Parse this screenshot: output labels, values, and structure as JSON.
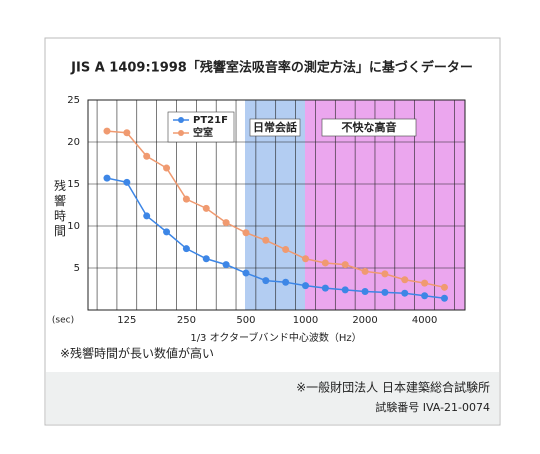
{
  "chart_data": {
    "type": "line",
    "title": "JIS A 1409:1998「残響室法吸音率の測定方法」に基づくデーター",
    "y_label": "残響時間",
    "y_unit": "(sec)",
    "x_label": "1/3 オクターブバンド中心波数（Hz）",
    "note": "※残響時間が長い数値が高い",
    "annotations": [
      "日常会話",
      "不快な高音"
    ],
    "footer": [
      "※一般財団法人 日本建築総合試験所",
      "試験番号 IVA-21-0074"
    ],
    "categories": [
      null,
      125,
      null,
      null,
      250,
      null,
      null,
      500,
      null,
      null,
      1000,
      null,
      null,
      2000,
      null,
      null,
      4000,
      null
    ],
    "series": [
      {
        "name": "PT21F",
        "color": "#3d86e6",
        "values": [
          15.7,
          15.2,
          11.2,
          9.3,
          7.3,
          6.1,
          5.4,
          4.4,
          3.5,
          3.3,
          2.9,
          2.6,
          2.4,
          2.2,
          2.1,
          2.0,
          1.7,
          1.4
        ]
      },
      {
        "name": "空室",
        "color": "#f09a70",
        "values": [
          21.3,
          21.1,
          18.3,
          16.9,
          13.2,
          12.1,
          10.4,
          9.2,
          8.3,
          7.2,
          6.1,
          5.6,
          5.4,
          4.6,
          4.3,
          3.6,
          3.2,
          2.7
        ]
      }
    ],
    "ylim": [
      0,
      25
    ],
    "yticks": [
      5,
      10,
      15,
      20,
      25
    ],
    "grid": true
  }
}
